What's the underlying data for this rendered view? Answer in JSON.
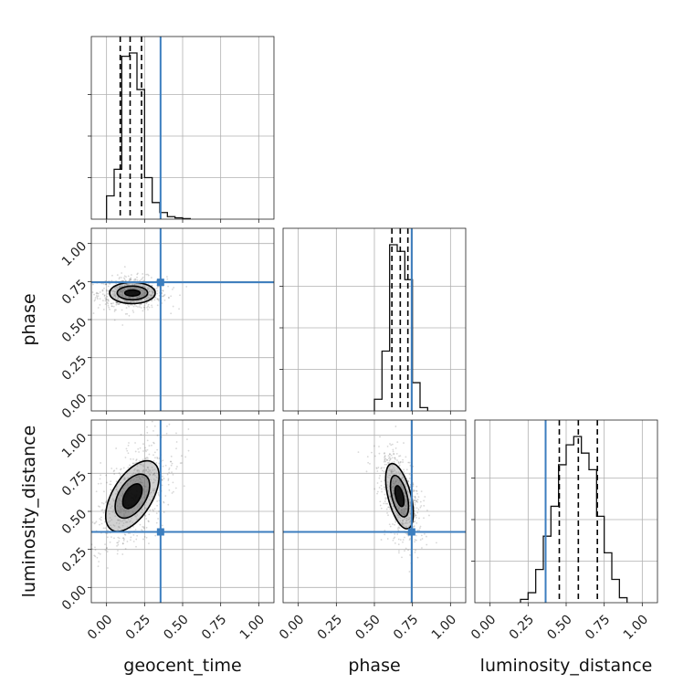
{
  "chart_data": {
    "type": "corner",
    "parameters": [
      "geocent_time",
      "phase",
      "luminosity_distance"
    ],
    "range": [
      -0.1,
      1.1
    ],
    "ticks": [
      0.0,
      0.25,
      0.5,
      0.75,
      1.0
    ],
    "tick_labels": [
      "0.00",
      "0.25",
      "0.50",
      "0.75",
      "1.00"
    ],
    "grid": true,
    "truth": {
      "color": "#3c7ebf",
      "values": {
        "geocent_time": 0.355,
        "phase": 0.745,
        "luminosity_distance": 0.365
      }
    },
    "quantiles": {
      "geocent_time": [
        0.09,
        0.155,
        0.23
      ],
      "phase": [
        0.615,
        0.67,
        0.72
      ],
      "luminosity_distance": [
        0.455,
        0.58,
        0.705
      ]
    },
    "histograms": {
      "geocent_time": {
        "bin_edges": [
          0.0,
          0.05,
          0.1,
          0.15,
          0.2,
          0.25,
          0.3,
          0.35,
          0.4,
          0.45,
          0.5,
          0.55
        ],
        "counts": [
          0.14,
          0.3,
          0.98,
          1.0,
          0.78,
          0.25,
          0.1,
          0.04,
          0.015,
          0.008,
          0.003
        ]
      },
      "phase": {
        "bin_edges": [
          0.5,
          0.55,
          0.6,
          0.65,
          0.7,
          0.75,
          0.8,
          0.85
        ],
        "counts": [
          0.07,
          0.36,
          1.0,
          0.96,
          0.79,
          0.17,
          0.02
        ]
      },
      "luminosity_distance": {
        "bin_edges": [
          0.2,
          0.25,
          0.3,
          0.35,
          0.4,
          0.45,
          0.5,
          0.55,
          0.6,
          0.65,
          0.7,
          0.75,
          0.8,
          0.85,
          0.9
        ],
        "counts": [
          0.02,
          0.06,
          0.2,
          0.4,
          0.58,
          0.83,
          0.95,
          1.0,
          0.9,
          0.8,
          0.52,
          0.3,
          0.14,
          0.03
        ]
      }
    },
    "contours_2d": [
      {
        "x": "geocent_time",
        "y": "phase",
        "center": [
          0.17,
          0.675
        ],
        "levels": [
          [
            0.05,
            0.02
          ],
          [
            0.1,
            0.045
          ],
          [
            0.15,
            0.07
          ]
        ]
      },
      {
        "x": "geocent_time",
        "y": "luminosity_distance",
        "center": [
          0.17,
          0.6
        ],
        "levels": [
          [
            0.05,
            0.09
          ],
          [
            0.09,
            0.16
          ],
          [
            0.13,
            0.26
          ]
        ]
      },
      {
        "x": "phase",
        "y": "luminosity_distance",
        "center": [
          0.665,
          0.6
        ],
        "levels": [
          [
            0.025,
            0.07
          ],
          [
            0.05,
            0.14
          ],
          [
            0.075,
            0.22
          ]
        ]
      }
    ]
  }
}
